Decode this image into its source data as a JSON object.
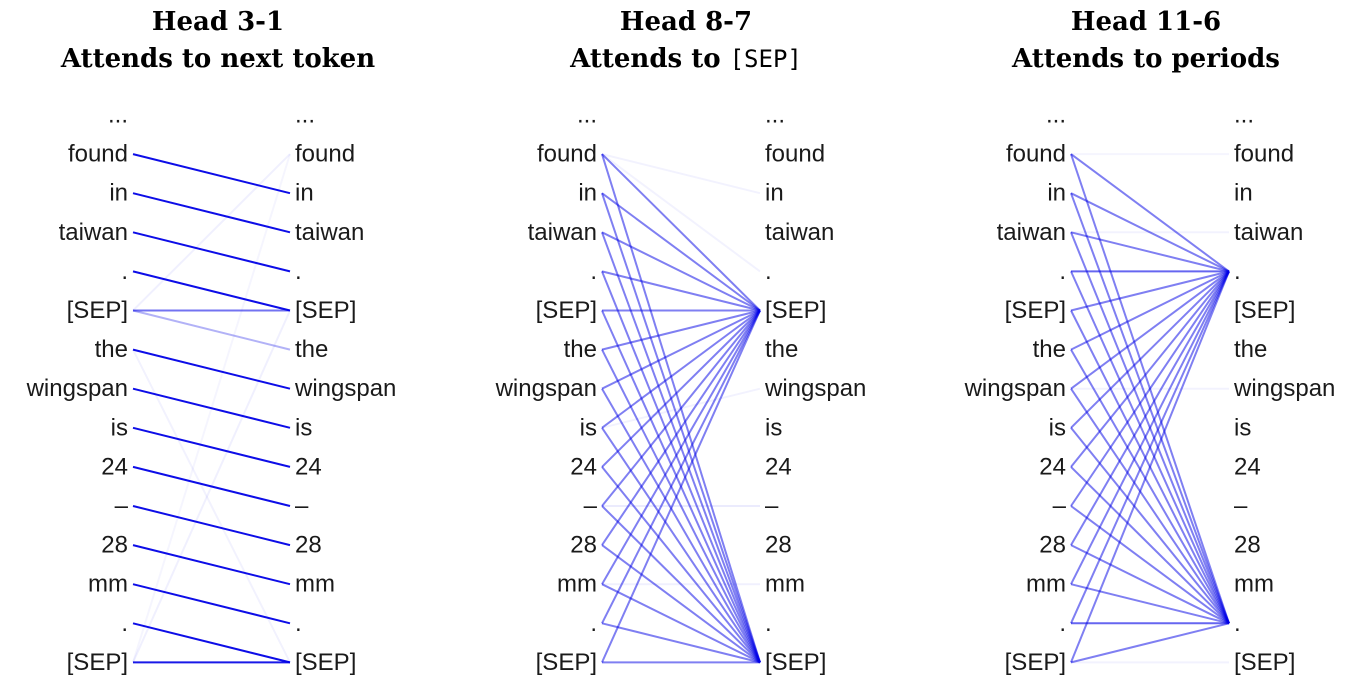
{
  "tokens": [
    "...",
    "found",
    "in",
    "taiwan",
    ".",
    "[SEP]",
    "the",
    "wingspan",
    "is",
    "24",
    "–",
    "28",
    "mm",
    ".",
    "[SEP]"
  ],
  "line_color": "#0000e6",
  "panels": [
    {
      "title_line1": "Head 3-1",
      "title_line2": "Attends to next token",
      "title_line2_code": "",
      "edges": [
        [
          1,
          2,
          0.95
        ],
        [
          2,
          3,
          0.95
        ],
        [
          3,
          4,
          0.95
        ],
        [
          4,
          5,
          0.95
        ],
        [
          5,
          5,
          0.55
        ],
        [
          5,
          6,
          0.3
        ],
        [
          6,
          7,
          0.95
        ],
        [
          7,
          8,
          0.95
        ],
        [
          8,
          9,
          0.95
        ],
        [
          9,
          10,
          0.95
        ],
        [
          10,
          11,
          0.95
        ],
        [
          11,
          12,
          0.95
        ],
        [
          12,
          13,
          0.95
        ],
        [
          13,
          14,
          0.95
        ],
        [
          14,
          14,
          0.9
        ],
        [
          5,
          1,
          0.06
        ],
        [
          14,
          5,
          0.06
        ],
        [
          6,
          14,
          0.05
        ],
        [
          14,
          1,
          0.04
        ]
      ]
    },
    {
      "title_line1": "Head 8-7",
      "title_line2": "Attends to ",
      "title_line2_code": "[SEP]",
      "edges": [
        [
          1,
          5,
          0.5
        ],
        [
          1,
          14,
          0.5
        ],
        [
          2,
          5,
          0.5
        ],
        [
          2,
          14,
          0.5
        ],
        [
          3,
          5,
          0.5
        ],
        [
          3,
          14,
          0.5
        ],
        [
          4,
          5,
          0.5
        ],
        [
          4,
          14,
          0.5
        ],
        [
          5,
          5,
          0.5
        ],
        [
          5,
          14,
          0.5
        ],
        [
          6,
          5,
          0.5
        ],
        [
          6,
          14,
          0.5
        ],
        [
          7,
          5,
          0.5
        ],
        [
          7,
          14,
          0.5
        ],
        [
          8,
          5,
          0.5
        ],
        [
          8,
          14,
          0.5
        ],
        [
          9,
          5,
          0.5
        ],
        [
          9,
          14,
          0.5
        ],
        [
          10,
          5,
          0.5
        ],
        [
          10,
          14,
          0.5
        ],
        [
          11,
          5,
          0.5
        ],
        [
          11,
          14,
          0.5
        ],
        [
          12,
          5,
          0.5
        ],
        [
          12,
          14,
          0.5
        ],
        [
          13,
          5,
          0.5
        ],
        [
          13,
          14,
          0.5
        ],
        [
          14,
          5,
          0.5
        ],
        [
          14,
          14,
          0.5
        ],
        [
          1,
          2,
          0.05
        ],
        [
          1,
          4,
          0.05
        ],
        [
          10,
          10,
          0.08
        ],
        [
          12,
          12,
          0.06
        ],
        [
          8,
          7,
          0.05
        ]
      ]
    },
    {
      "title_line1": "Head 11-6",
      "title_line2": "Attends to periods",
      "title_line2_code": "",
      "edges": [
        [
          1,
          4,
          0.5
        ],
        [
          1,
          13,
          0.5
        ],
        [
          2,
          4,
          0.5
        ],
        [
          2,
          13,
          0.5
        ],
        [
          3,
          4,
          0.5
        ],
        [
          3,
          13,
          0.5
        ],
        [
          4,
          4,
          0.6
        ],
        [
          4,
          13,
          0.5
        ],
        [
          5,
          4,
          0.5
        ],
        [
          5,
          13,
          0.5
        ],
        [
          6,
          4,
          0.5
        ],
        [
          6,
          13,
          0.5
        ],
        [
          7,
          4,
          0.5
        ],
        [
          7,
          13,
          0.5
        ],
        [
          8,
          4,
          0.5
        ],
        [
          8,
          13,
          0.5
        ],
        [
          9,
          4,
          0.5
        ],
        [
          9,
          13,
          0.5
        ],
        [
          10,
          4,
          0.5
        ],
        [
          10,
          13,
          0.5
        ],
        [
          11,
          4,
          0.5
        ],
        [
          11,
          13,
          0.5
        ],
        [
          12,
          4,
          0.5
        ],
        [
          12,
          13,
          0.5
        ],
        [
          13,
          4,
          0.5
        ],
        [
          13,
          13,
          0.6
        ],
        [
          14,
          4,
          0.5
        ],
        [
          14,
          13,
          0.5
        ],
        [
          1,
          1,
          0.04
        ],
        [
          3,
          3,
          0.05
        ],
        [
          7,
          7,
          0.05
        ],
        [
          14,
          14,
          0.05
        ]
      ]
    }
  ]
}
